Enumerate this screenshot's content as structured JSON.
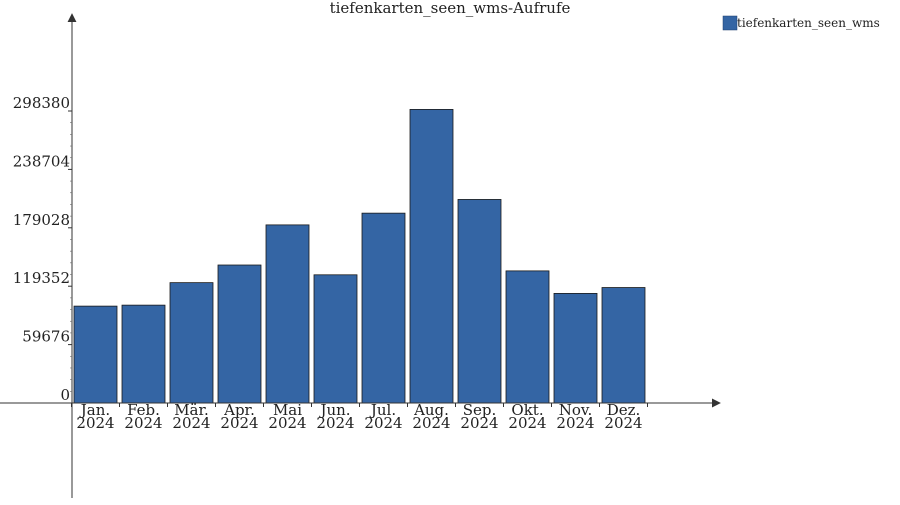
{
  "chart_data": {
    "type": "bar",
    "title": "tiefenkarten_seen_wms-Aufrufe",
    "xlabel": "",
    "ylabel": "",
    "categories": [
      [
        "Jan.",
        "2024"
      ],
      [
        "Feb.",
        "2024"
      ],
      [
        "Mär.",
        "2024"
      ],
      [
        "Apr.",
        "2024"
      ],
      [
        "Mai",
        "2024"
      ],
      [
        "Jun.",
        "2024"
      ],
      [
        "Jul.",
        "2024"
      ],
      [
        "Aug.",
        "2024"
      ],
      [
        "Sep.",
        "2024"
      ],
      [
        "Okt.",
        "2024"
      ],
      [
        "Nov.",
        "2024"
      ],
      [
        "Dez.",
        "2024"
      ]
    ],
    "series": [
      {
        "name": "tiefenkarten_seen_wms",
        "color": "#3465a4",
        "values": [
          99000,
          100000,
          123000,
          141000,
          182000,
          131000,
          194000,
          300000,
          208000,
          135000,
          112000,
          118000
        ]
      }
    ],
    "yticks": [
      "0",
      "59676",
      "119352",
      "179028",
      "238704",
      "298380"
    ],
    "ytick_values": [
      0,
      59676,
      119352,
      179028,
      238704,
      298380
    ],
    "ylim": [
      0,
      298380
    ],
    "grid": false,
    "legend_position": "top-right"
  }
}
